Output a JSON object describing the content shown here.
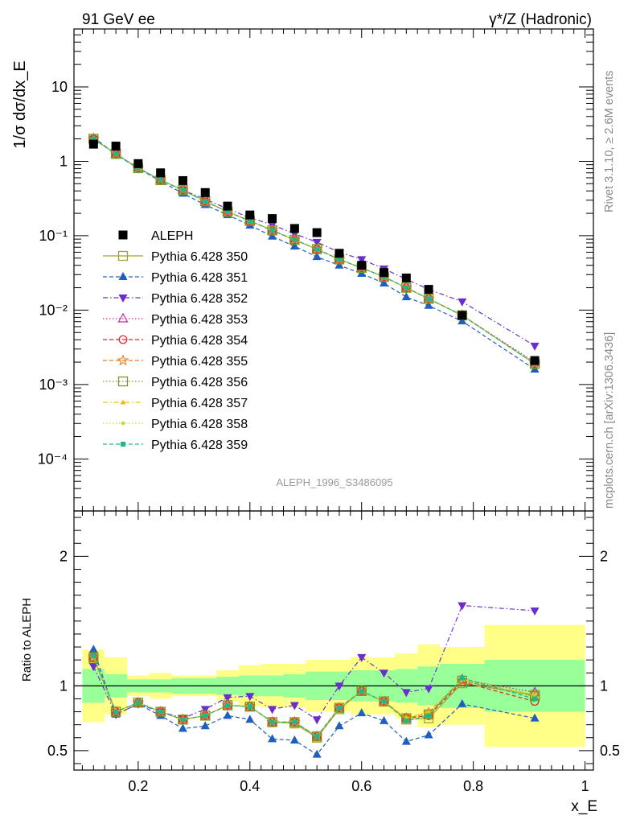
{
  "header": {
    "left": "91 GeV ee",
    "right": "γ*/Z (Hadronic)"
  },
  "side_labels": {
    "rivet": "Rivet 3.1.10, ≥ 2.6M events",
    "mcplots": "mcplots.cern.ch [arXiv:1306.3436]"
  },
  "watermark": "ALEPH_1996_S3486095",
  "chart_data": [
    {
      "type": "scatter",
      "panel": "main",
      "ylabel": "1/σ dσ/dx_E",
      "yscale": "log",
      "ylim": [
        2e-05,
        60
      ],
      "xlim": [
        0.085,
        1.015
      ],
      "ytick_labels": [
        "10",
        "1",
        "10⁻¹",
        "10⁻²",
        "10⁻³",
        "10⁻⁴"
      ],
      "legend_position": "center-left",
      "x": [
        0.12,
        0.16,
        0.2,
        0.24,
        0.28,
        0.32,
        0.36,
        0.4,
        0.44,
        0.48,
        0.52,
        0.56,
        0.6,
        0.64,
        0.68,
        0.72,
        0.78,
        0.91
      ],
      "data": {
        "name": "ALEPH",
        "color": "#000000",
        "values": [
          1.7,
          1.6,
          0.93,
          0.7,
          0.55,
          0.38,
          0.25,
          0.19,
          0.17,
          0.125,
          0.11,
          0.058,
          0.04,
          0.032,
          0.027,
          0.019,
          0.0085,
          0.0021
        ]
      },
      "series": [
        {
          "name": "Pythia 6.428 350",
          "color": "#a6a030",
          "marker": "square-open",
          "dash": "",
          "values": [
            2.0,
            1.26,
            0.81,
            0.56,
            0.41,
            0.29,
            0.21,
            0.158,
            0.118,
            0.088,
            0.066,
            0.048,
            0.037,
            0.028,
            0.02,
            0.0142,
            0.0085,
            0.0019
          ]
        },
        {
          "name": "Pythia 6.428 351",
          "color": "#1f5fbf",
          "marker": "triangle-up",
          "dash": "5,3",
          "values": [
            2.1,
            1.24,
            0.8,
            0.54,
            0.37,
            0.26,
            0.19,
            0.138,
            0.098,
            0.072,
            0.052,
            0.04,
            0.031,
            0.023,
            0.015,
            0.0115,
            0.0071,
            0.0016
          ]
        },
        {
          "name": "Pythia 6.428 352",
          "color": "#6a2ecf",
          "marker": "triangle-down",
          "dash": "6,3,1.5,3",
          "values": [
            2.0,
            1.25,
            0.81,
            0.56,
            0.41,
            0.31,
            0.23,
            0.175,
            0.14,
            0.106,
            0.082,
            0.06,
            0.048,
            0.036,
            0.026,
            0.019,
            0.013,
            0.0033
          ]
        },
        {
          "name": "Pythia 6.428 353",
          "color": "#c02aa0",
          "marker": "triangle-open",
          "dash": "1.5,2.5",
          "values": [
            2.0,
            1.26,
            0.81,
            0.56,
            0.41,
            0.29,
            0.21,
            0.158,
            0.118,
            0.088,
            0.066,
            0.048,
            0.037,
            0.028,
            0.02,
            0.0142,
            0.0085,
            0.002
          ]
        },
        {
          "name": "Pythia 6.428 354",
          "color": "#e0202a",
          "marker": "circle-open",
          "dash": "5,3",
          "values": [
            2.0,
            1.26,
            0.81,
            0.56,
            0.41,
            0.29,
            0.21,
            0.158,
            0.118,
            0.088,
            0.066,
            0.048,
            0.037,
            0.028,
            0.02,
            0.0142,
            0.0085,
            0.0019
          ]
        },
        {
          "name": "Pythia 6.428 355",
          "color": "#f07a18",
          "marker": "star-open",
          "dash": "5,3",
          "values": [
            2.0,
            1.26,
            0.81,
            0.56,
            0.41,
            0.29,
            0.21,
            0.158,
            0.118,
            0.088,
            0.066,
            0.048,
            0.037,
            0.028,
            0.02,
            0.0142,
            0.0085,
            0.0019
          ]
        },
        {
          "name": "Pythia 6.428 356",
          "color": "#7c9a1e",
          "marker": "square-open",
          "dash": "1.5,2.5",
          "values": [
            2.0,
            1.26,
            0.81,
            0.56,
            0.41,
            0.29,
            0.21,
            0.158,
            0.118,
            0.088,
            0.066,
            0.048,
            0.037,
            0.028,
            0.02,
            0.0142,
            0.0085,
            0.0019
          ]
        },
        {
          "name": "Pythia 6.428 357",
          "color": "#e8c018",
          "marker": "tri-small",
          "dash": "6,3,1.5,3",
          "values": [
            2.0,
            1.26,
            0.81,
            0.56,
            0.41,
            0.29,
            0.21,
            0.158,
            0.118,
            0.088,
            0.066,
            0.048,
            0.037,
            0.028,
            0.02,
            0.0142,
            0.0085,
            0.0019
          ]
        },
        {
          "name": "Pythia 6.428 358",
          "color": "#c8d22a",
          "marker": "dot",
          "dash": "1.5,2.5",
          "values": [
            2.0,
            1.26,
            0.81,
            0.56,
            0.41,
            0.29,
            0.21,
            0.158,
            0.118,
            0.088,
            0.066,
            0.048,
            0.037,
            0.028,
            0.02,
            0.0142,
            0.0085,
            0.0019
          ]
        },
        {
          "name": "Pythia 6.428 359",
          "color": "#1fb888",
          "marker": "square-small",
          "dash": "5,3",
          "values": [
            2.0,
            1.26,
            0.81,
            0.56,
            0.41,
            0.29,
            0.21,
            0.158,
            0.118,
            0.088,
            0.066,
            0.048,
            0.037,
            0.028,
            0.02,
            0.0142,
            0.0085,
            0.0019
          ]
        }
      ]
    },
    {
      "type": "scatter",
      "panel": "ratio",
      "ylabel": "Ratio to ALEPH",
      "xlabel": "x_E",
      "ylim": [
        0.35,
        2.35
      ],
      "xlim": [
        0.085,
        1.015
      ],
      "yticks": [
        0.5,
        1,
        2
      ],
      "ytick_labels": [
        "0.5",
        "1",
        "2"
      ],
      "xticks": [
        0.2,
        0.4,
        0.6,
        0.8,
        1.0
      ],
      "xtick_labels": [
        "0.2",
        "0.4",
        "0.6",
        "0.8",
        "1"
      ],
      "bands": {
        "edges": [
          0.1,
          0.14,
          0.18,
          0.22,
          0.26,
          0.3,
          0.34,
          0.38,
          0.42,
          0.46,
          0.5,
          0.54,
          0.58,
          0.62,
          0.66,
          0.7,
          0.74,
          0.82,
          1.0
        ],
        "inner": [
          0.13,
          0.09,
          0.05,
          0.05,
          0.06,
          0.06,
          0.07,
          0.08,
          0.08,
          0.09,
          0.11,
          0.11,
          0.12,
          0.12,
          0.13,
          0.15,
          0.17,
          0.2
        ],
        "outer": [
          0.28,
          0.22,
          0.08,
          0.1,
          0.08,
          0.08,
          0.12,
          0.16,
          0.17,
          0.17,
          0.2,
          0.2,
          0.22,
          0.22,
          0.25,
          0.32,
          0.3,
          0.47
        ],
        "inner_color": "#99ff99",
        "outer_color": "#ffff88"
      },
      "series": [
        {
          "name": "Pythia 6.428 350",
          "values": [
            1.21,
            0.8,
            0.87,
            0.8,
            0.74,
            0.77,
            0.85,
            0.84,
            0.72,
            0.71,
            0.6,
            0.82,
            0.96,
            0.88,
            0.74,
            0.75,
            1.02,
            0.93
          ]
        },
        {
          "name": "Pythia 6.428 351",
          "values": [
            1.28,
            0.78,
            0.86,
            0.77,
            0.67,
            0.69,
            0.77,
            0.74,
            0.59,
            0.58,
            0.47,
            0.69,
            0.79,
            0.73,
            0.57,
            0.62,
            0.86,
            0.75
          ]
        },
        {
          "name": "Pythia 6.428 352",
          "values": [
            1.15,
            0.78,
            0.86,
            0.8,
            0.75,
            0.82,
            0.91,
            0.92,
            0.82,
            0.85,
            0.74,
            1.0,
            1.22,
            1.1,
            0.95,
            0.98,
            1.62,
            1.58
          ]
        },
        {
          "name": "Pythia 6.428 353",
          "values": [
            1.22,
            0.8,
            0.87,
            0.8,
            0.74,
            0.77,
            0.85,
            0.84,
            0.72,
            0.72,
            0.61,
            0.83,
            0.96,
            0.88,
            0.75,
            0.79,
            1.05,
            0.95
          ]
        },
        {
          "name": "Pythia 6.428 354",
          "values": [
            1.22,
            0.8,
            0.87,
            0.8,
            0.74,
            0.77,
            0.85,
            0.84,
            0.72,
            0.72,
            0.61,
            0.83,
            0.96,
            0.88,
            0.75,
            0.77,
            1.03,
            0.88
          ]
        },
        {
          "name": "Pythia 6.428 355",
          "values": [
            1.22,
            0.8,
            0.87,
            0.8,
            0.74,
            0.77,
            0.85,
            0.84,
            0.72,
            0.72,
            0.61,
            0.83,
            0.96,
            0.88,
            0.75,
            0.79,
            1.04,
            0.92
          ]
        },
        {
          "name": "Pythia 6.428 356",
          "values": [
            1.22,
            0.8,
            0.87,
            0.8,
            0.74,
            0.77,
            0.85,
            0.84,
            0.72,
            0.72,
            0.61,
            0.83,
            0.96,
            0.88,
            0.75,
            0.78,
            1.04,
            0.92
          ]
        },
        {
          "name": "Pythia 6.428 357",
          "values": [
            1.22,
            0.8,
            0.87,
            0.8,
            0.74,
            0.77,
            0.85,
            0.84,
            0.72,
            0.72,
            0.61,
            0.83,
            0.96,
            0.88,
            0.75,
            0.8,
            1.05,
            0.93
          ]
        },
        {
          "name": "Pythia 6.428 358",
          "values": [
            1.22,
            0.8,
            0.87,
            0.8,
            0.74,
            0.77,
            0.85,
            0.84,
            0.72,
            0.72,
            0.61,
            0.83,
            0.96,
            0.88,
            0.75,
            0.79,
            1.05,
            0.92
          ]
        },
        {
          "name": "Pythia 6.428 359",
          "values": [
            1.23,
            0.8,
            0.87,
            0.8,
            0.74,
            0.77,
            0.85,
            0.84,
            0.72,
            0.72,
            0.61,
            0.83,
            0.96,
            0.88,
            0.73,
            0.77,
            1.06,
            0.9
          ]
        }
      ]
    }
  ]
}
